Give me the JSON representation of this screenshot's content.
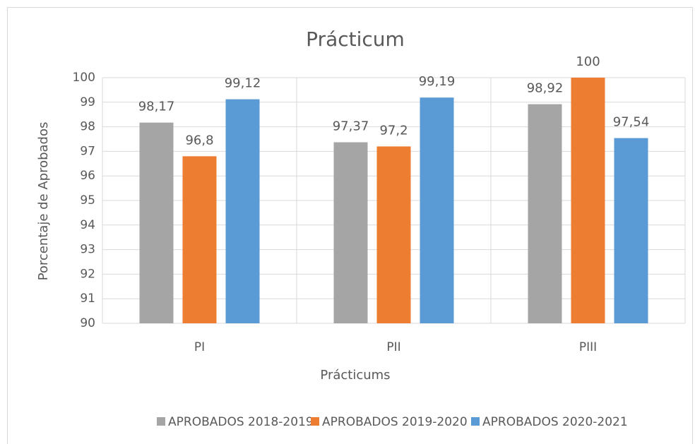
{
  "chart_data": {
    "type": "bar",
    "title": "Prácticum",
    "x_label": "Prácticums",
    "y_label": "Porcentaje de Aprobados",
    "categories": [
      "PI",
      "PII",
      "PIII"
    ],
    "series": [
      {
        "name": "APROBADOS 2018-2019",
        "color": "#a5a5a5",
        "values": [
          98.17,
          97.37,
          98.92
        ],
        "value_labels": [
          "98,17",
          "97,37",
          "98,92"
        ]
      },
      {
        "name": "APROBADOS 2019-2020",
        "color": "#ed7d31",
        "values": [
          96.8,
          97.2,
          100
        ],
        "value_labels": [
          "96,8",
          "97,2",
          "100"
        ]
      },
      {
        "name": "APROBADOS 2020-2021",
        "color": "#5b9bd5",
        "values": [
          99.12,
          99.19,
          97.54
        ],
        "value_labels": [
          "99,12",
          "99,19",
          "97,54"
        ]
      }
    ],
    "ylim": [
      90,
      100
    ],
    "yticks": [
      90,
      91,
      92,
      93,
      94,
      95,
      96,
      97,
      98,
      99,
      100
    ],
    "grid": true,
    "legend": "bottom"
  }
}
